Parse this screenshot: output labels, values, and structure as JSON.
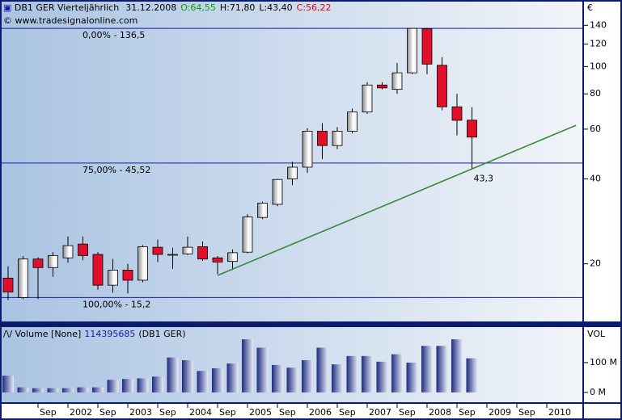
{
  "chart_data": [
    {
      "type": "candlestick",
      "title": "DB1 GER Vierteljährlich",
      "date": "31.12.2008",
      "ohlc_labels": [
        "O:64,55",
        "H:71,80",
        "L:43,40",
        "C:56,22"
      ],
      "ohlc_label_colors": [
        "#00a000",
        "#000000",
        "#000000",
        "#e00000"
      ],
      "copyright": "© www.tradesignalonline.com",
      "y_unit": "€",
      "x": [
        2001,
        2001.25,
        2001.5,
        2001.75,
        2002,
        2002.25,
        2002.5,
        2002.75,
        2003,
        2003.25,
        2003.5,
        2003.75,
        2004,
        2004.25,
        2004.5,
        2004.75,
        2005,
        2005.25,
        2005.5,
        2005.75,
        2006,
        2006.25,
        2006.5,
        2006.75,
        2007,
        2007.25,
        2007.5,
        2007.75,
        2008,
        2008.25,
        2008.5,
        2008.75
      ],
      "open": [
        17.8,
        15.2,
        20.8,
        19.4,
        21,
        23.5,
        21.6,
        16.8,
        19,
        17.5,
        22.9,
        21.5,
        21.7,
        23,
        21,
        20.4,
        22,
        29.2,
        32.5,
        40,
        44,
        59,
        52.5,
        59,
        69,
        86,
        83,
        95,
        136,
        101,
        72,
        64.55
      ],
      "high": [
        19.6,
        21.3,
        21.1,
        22,
        25,
        25,
        22,
        20.8,
        20,
        23.3,
        24.4,
        22.8,
        25,
        24,
        21.3,
        22.5,
        30,
        33.2,
        40,
        46,
        60.5,
        63,
        61,
        71,
        88,
        88,
        103,
        136.5,
        137,
        108,
        80,
        71.8
      ],
      "low": [
        14.9,
        15,
        15,
        18,
        20.2,
        20.6,
        16.2,
        15.8,
        15.7,
        17.2,
        20.3,
        19.2,
        21.5,
        20.5,
        18.4,
        19,
        21.8,
        28.8,
        32,
        38,
        42,
        47,
        51,
        58,
        68,
        83,
        80,
        94,
        94,
        70,
        57,
        43.4
      ],
      "close": [
        15.9,
        20.8,
        19.4,
        21.4,
        23.2,
        21.4,
        16.8,
        19,
        17.5,
        23,
        21.6,
        21.6,
        22.9,
        20.8,
        20.3,
        21.9,
        29.3,
        32.8,
        39.8,
        44,
        59,
        52.5,
        59,
        69,
        86,
        84,
        95,
        136.5,
        102,
        72,
        64.5,
        56.22
      ],
      "up_color": "#ffffff",
      "down_color": "#e0102a",
      "log": true,
      "ylim": [
        12.5,
        169.8
      ],
      "yticks": [
        20,
        40,
        60,
        80,
        100,
        120,
        140
      ],
      "xlim": [
        2000.892,
        2010.595
      ],
      "xticks": [
        {
          "value": 2001.5,
          "label": "Sep"
        },
        2002,
        {
          "value": 2002.5,
          "label": "Sep"
        },
        2003,
        {
          "value": 2003.5,
          "label": "Sep"
        },
        2004,
        {
          "value": 2004.5,
          "label": "Sep"
        },
        2005,
        {
          "value": 2005.5,
          "label": "Sep"
        },
        2006,
        {
          "value": 2006.5,
          "label": "Sep"
        },
        2007,
        {
          "value": 2007.5,
          "label": "Sep"
        },
        2008,
        {
          "value": 2008.5,
          "label": "Sep"
        },
        2009,
        {
          "value": 2009.5,
          "label": "Sep"
        },
        2010
      ],
      "hlines": [
        {
          "value": 136.5,
          "label": "0,00% - 136,5"
        },
        {
          "value": 45.52,
          "label": "75,00% - 45,52"
        },
        {
          "value": 15.2,
          "label": "100,00% - 15,2"
        }
      ],
      "hline_color": "#1a1aa0",
      "trendline": {
        "x": [
          2004.5,
          2010.49
        ],
        "values": [
          18.2,
          61.9
        ],
        "color": "#3a8a3a"
      },
      "annotation": {
        "label": "43,3",
        "value": 43.3,
        "x": 2008.75,
        "color": "#208020"
      }
    },
    {
      "type": "bar",
      "title": "Volume [None]",
      "last_value_label": "114395685",
      "subtitle": "(DB1 GER)",
      "axis_label": "VOL",
      "values": [
        56,
        17,
        14,
        14,
        14,
        17,
        17,
        42,
        45,
        47,
        53,
        117,
        108,
        72,
        81,
        97,
        178,
        150,
        92,
        83,
        108,
        150,
        94,
        122,
        122,
        103,
        128,
        100,
        156,
        156,
        178,
        114.395685
      ],
      "ylim": [
        -33,
        219
      ],
      "yticks": [
        {
          "value": 100,
          "label": "100 M"
        },
        {
          "value": 0,
          "label": "0 M"
        }
      ],
      "color": "#1c2a80"
    }
  ]
}
